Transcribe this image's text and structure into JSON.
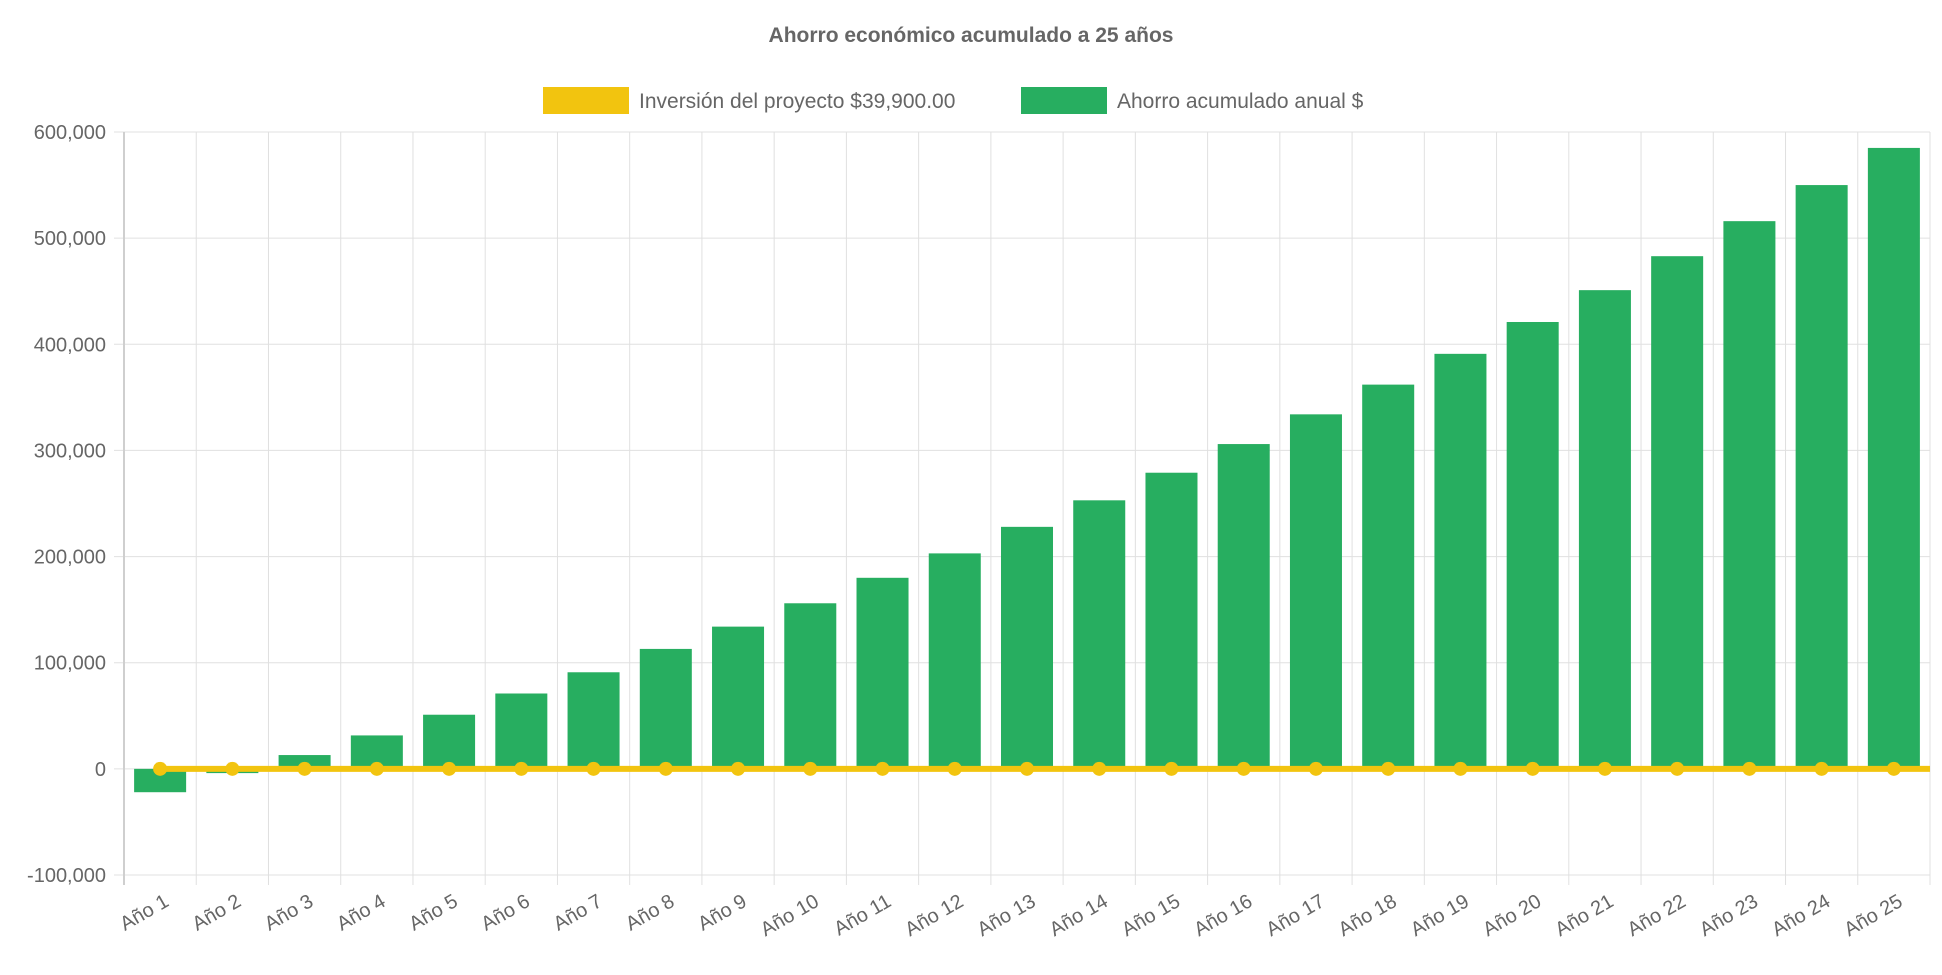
{
  "chart_data": {
    "type": "bar",
    "title": "Ahorro económico acumulado a 25 años",
    "categories": [
      "Año 1",
      "Año 2",
      "Año 3",
      "Año 4",
      "Año 5",
      "Año 6",
      "Año 7",
      "Año 8",
      "Año 9",
      "Año 10",
      "Año 11",
      "Año 12",
      "Año 13",
      "Año 14",
      "Año 15",
      "Año 16",
      "Año 17",
      "Año 18",
      "Año 19",
      "Año 20",
      "Año 21",
      "Año 22",
      "Año 23",
      "Año 24",
      "Año 25"
    ],
    "series": [
      {
        "name": "Inversión del proyecto $39,900.00",
        "type": "line",
        "color": "#f2c40f",
        "values": [
          0,
          0,
          0,
          0,
          0,
          0,
          0,
          0,
          0,
          0,
          0,
          0,
          0,
          0,
          0,
          0,
          0,
          0,
          0,
          0,
          0,
          0,
          0,
          0,
          0
        ]
      },
      {
        "name": "Ahorro acumulado anual $",
        "type": "bar",
        "color": "#27ae60",
        "values": [
          -22000,
          -4000,
          13000,
          31500,
          51000,
          71000,
          91000,
          113000,
          134000,
          156000,
          180000,
          203000,
          228000,
          253000,
          279000,
          306000,
          334000,
          362000,
          391000,
          421000,
          451000,
          483000,
          516000,
          550000,
          585000
        ]
      }
    ],
    "yticks": [
      "600,000",
      "500,000",
      "400,000",
      "300,000",
      "200,000",
      "100,000",
      "0",
      "-100,000"
    ],
    "ylim": [
      -100000,
      600000
    ],
    "grid": true,
    "legend_position": "top"
  }
}
